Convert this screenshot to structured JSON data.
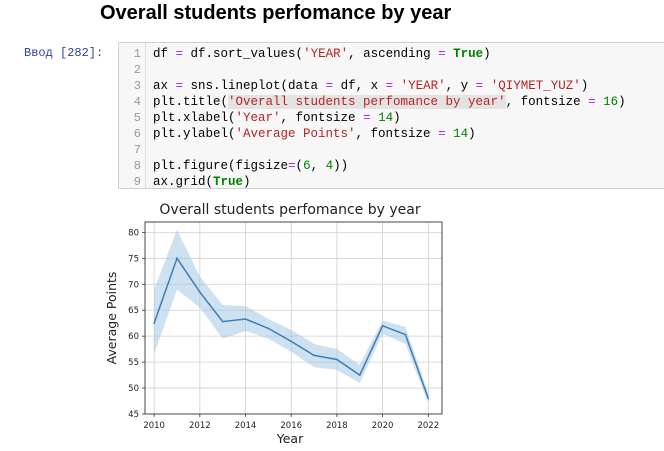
{
  "page_heading": "Overall students perfomance by year",
  "cell": {
    "prompt": "Ввод [282]:",
    "line_numbers": [
      "1",
      "2",
      "3",
      "4",
      "5",
      "6",
      "7",
      "8",
      "9"
    ],
    "lines": [
      "df = df.sort_values('YEAR', ascending = True)",
      "",
      "ax = sns.lineplot(data = df, x = 'YEAR', y = 'QIYMET_YUZ')",
      "plt.title('Overall students perfomance by year', fontsize = 16)",
      "plt.xlabel('Year', fontsize = 14)",
      "plt.ylabel('Average Points', fontsize = 14)",
      "",
      "plt.figure(figsize=(6, 4))",
      "ax.grid(True)"
    ]
  },
  "chart_data": {
    "type": "line",
    "title": "Overall students perfomance by year",
    "xlabel": "Year",
    "ylabel": "Average Points",
    "xlim": [
      2009.6,
      2022.6
    ],
    "ylim": [
      45,
      82
    ],
    "xticks": [
      "2010",
      "2012",
      "2014",
      "2016",
      "2018",
      "2020",
      "2022"
    ],
    "yticks": [
      "45",
      "50",
      "55",
      "60",
      "65",
      "70",
      "75",
      "80"
    ],
    "grid": true,
    "line_color": "#3a7fb8",
    "band_color": "#9ec4e2",
    "series": [
      {
        "x": [
          2010,
          2011,
          2012,
          2013,
          2014,
          2015,
          2016,
          2017,
          2018,
          2019,
          2020,
          2021,
          2022
        ],
        "values": [
          62.5,
          75.0,
          68.5,
          62.8,
          63.3,
          61.5,
          59.0,
          56.3,
          55.5,
          52.5,
          62.0,
          60.3,
          48.0
        ],
        "ci_upper": [
          69.0,
          80.5,
          71.5,
          66.0,
          65.8,
          63.3,
          61.2,
          58.5,
          57.5,
          54.5,
          63.0,
          61.8,
          49.0
        ],
        "ci_lower": [
          56.5,
          69.0,
          65.5,
          59.5,
          61.0,
          59.5,
          57.0,
          54.0,
          53.5,
          51.0,
          60.5,
          58.5,
          47.0
        ]
      }
    ]
  }
}
